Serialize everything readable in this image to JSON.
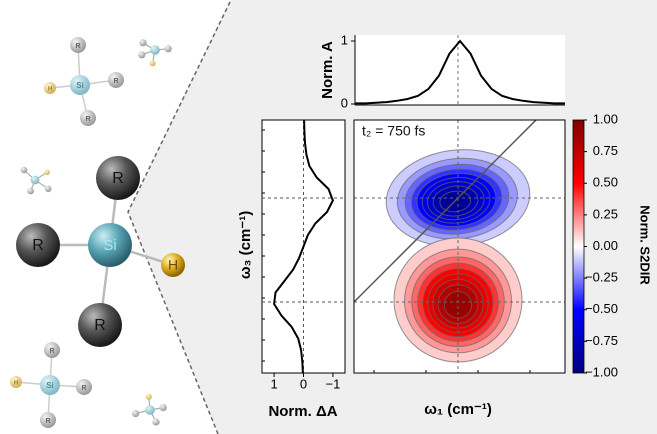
{
  "molecules": [
    {
      "atoms": [
        {
          "label": "Si"
        },
        {
          "label": "R"
        },
        {
          "label": "R"
        },
        {
          "label": "R"
        },
        {
          "label": "H"
        }
      ]
    },
    {
      "atoms": [
        {
          "label": "Si"
        },
        {
          "label": "R"
        },
        {
          "label": "R"
        },
        {
          "label": "R"
        },
        {
          "label": "H"
        }
      ]
    },
    {
      "atoms": [
        {
          "label": "Si"
        },
        {
          "label": "R"
        },
        {
          "label": "R"
        },
        {
          "label": "R"
        },
        {
          "label": "H"
        }
      ]
    }
  ],
  "chart_data": [
    {
      "type": "line",
      "ylabel": "Norm. A",
      "color": "#000000",
      "values": [
        0.01,
        0.01,
        0.02,
        0.03,
        0.05,
        0.08,
        0.13,
        0.24,
        0.45,
        0.8,
        1,
        0.8,
        0.45,
        0.24,
        0.13,
        0.08,
        0.05,
        0.03,
        0.02,
        0.01,
        0.01
      ],
      "ylim": [
        -0.016,
        1.095
      ],
      "yticks": [
        0,
        1
      ]
    },
    {
      "type": "line",
      "orientation": "vertical",
      "xlabel": "Norm. ΔA",
      "ylabel": "ω₃ (cm⁻¹)",
      "color": "#000000",
      "values": [
        -0.02,
        -0.03,
        -0.05,
        -0.1,
        -0.2,
        -0.45,
        -0.85,
        -1,
        -0.8,
        -0.4,
        -0.15,
        0,
        0.15,
        0.35,
        0.65,
        0.95,
        1,
        0.75,
        0.4,
        0.18,
        0.08,
        0.04,
        0.02
      ],
      "xlim": [
        1.41,
        -1.41
      ],
      "xticks": [
        1,
        0,
        {
          "value": -1,
          "label": "−1"
        }
      ]
    },
    {
      "type": "contour",
      "title": "t₂ = 750 fs",
      "xlabel": "ω₁ (cm⁻¹)",
      "peaks": [
        {
          "amplitude": -1
        },
        {
          "amplitude": 1
        }
      ],
      "levels": [
        0.1,
        0.2,
        0.3,
        0.4,
        0.5,
        0.6,
        0.7,
        0.8,
        0.9
      ],
      "colorbar": {
        "label": "Norm. S2DIR",
        "lim": [
          -1,
          1
        ],
        "colormap": [
          "#000080",
          "#0000ff",
          "#ffffff",
          "#ff0000",
          "#800000"
        ],
        "ticks": [
          {
            "value": 1,
            "label": "1.00"
          },
          {
            "value": 0.75,
            "label": "0.75"
          },
          {
            "value": 0.5,
            "label": "0.50"
          },
          {
            "value": 0.25,
            "label": "0.25"
          },
          {
            "value": 0,
            "label": "0.00"
          },
          {
            "value": -0.25,
            "label": "−0.25"
          },
          {
            "value": -0.5,
            "label": "−0.50"
          },
          {
            "value": -0.75,
            "label": "−0.75"
          },
          {
            "value": -1,
            "label": "−1.00"
          }
        ]
      }
    }
  ]
}
